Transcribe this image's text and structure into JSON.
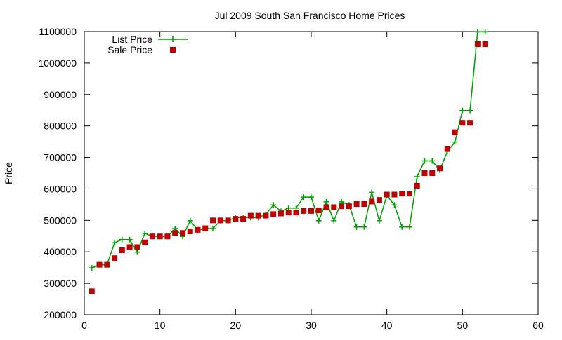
{
  "chart_data": {
    "type": "line",
    "title": "Jul 2009 South San Francisco Home Prices",
    "xlabel": "",
    "ylabel": "Price",
    "xlim": [
      0,
      60
    ],
    "ylim": [
      200000,
      1100000
    ],
    "xticks": [
      0,
      10,
      20,
      30,
      40,
      50,
      60
    ],
    "yticks": [
      200000,
      300000,
      400000,
      500000,
      600000,
      700000,
      800000,
      900000,
      1000000,
      1100000
    ],
    "grid": false,
    "legend_position": "top-left",
    "series": [
      {
        "name": "List Price",
        "style": "line-plus",
        "color": "#00a000",
        "x": [
          1,
          2,
          3,
          4,
          5,
          6,
          7,
          8,
          9,
          10,
          11,
          12,
          13,
          14,
          15,
          16,
          17,
          18,
          19,
          20,
          21,
          22,
          23,
          24,
          25,
          26,
          27,
          28,
          29,
          30,
          31,
          32,
          33,
          34,
          35,
          36,
          37,
          38,
          39,
          40,
          41,
          42,
          43,
          44,
          45,
          46,
          47,
          48,
          49,
          50,
          51,
          52,
          53
        ],
        "values": [
          349000,
          359000,
          359000,
          429000,
          439000,
          439000,
          399000,
          459000,
          449000,
          449000,
          449000,
          474000,
          449000,
          499000,
          469000,
          474000,
          474000,
          499000,
          499000,
          509000,
          509000,
          509000,
          509000,
          519000,
          549000,
          529000,
          539000,
          539000,
          574000,
          574000,
          499000,
          559000,
          499000,
          559000,
          549000,
          479000,
          479000,
          589000,
          499000,
          579000,
          549000,
          479000,
          479000,
          639000,
          689000,
          689000,
          659000,
          719000,
          749000,
          849000,
          849000,
          1099000,
          1099000
        ]
      },
      {
        "name": "Sale Price",
        "style": "square-points",
        "color": "#c00000",
        "x": [
          1,
          2,
          3,
          4,
          5,
          6,
          7,
          8,
          9,
          10,
          11,
          12,
          13,
          14,
          15,
          16,
          17,
          18,
          19,
          20,
          21,
          22,
          23,
          24,
          25,
          26,
          27,
          28,
          29,
          30,
          31,
          32,
          33,
          34,
          35,
          36,
          37,
          38,
          39,
          40,
          41,
          42,
          43,
          44,
          45,
          46,
          47,
          48,
          49,
          50,
          51,
          52,
          53
        ],
        "values": [
          275000,
          359000,
          359000,
          380000,
          405000,
          415000,
          415000,
          430000,
          449000,
          449000,
          449000,
          460000,
          460000,
          465000,
          470000,
          475000,
          500000,
          500000,
          500000,
          505000,
          505000,
          515000,
          515000,
          515000,
          520000,
          522000,
          525000,
          525000,
          530000,
          530000,
          532000,
          542000,
          542000,
          545000,
          545000,
          552000,
          552000,
          560000,
          565000,
          582000,
          582000,
          585000,
          585000,
          610000,
          650000,
          650000,
          665000,
          728000,
          780000,
          810000,
          810000,
          1060000,
          1060000
        ]
      }
    ]
  }
}
